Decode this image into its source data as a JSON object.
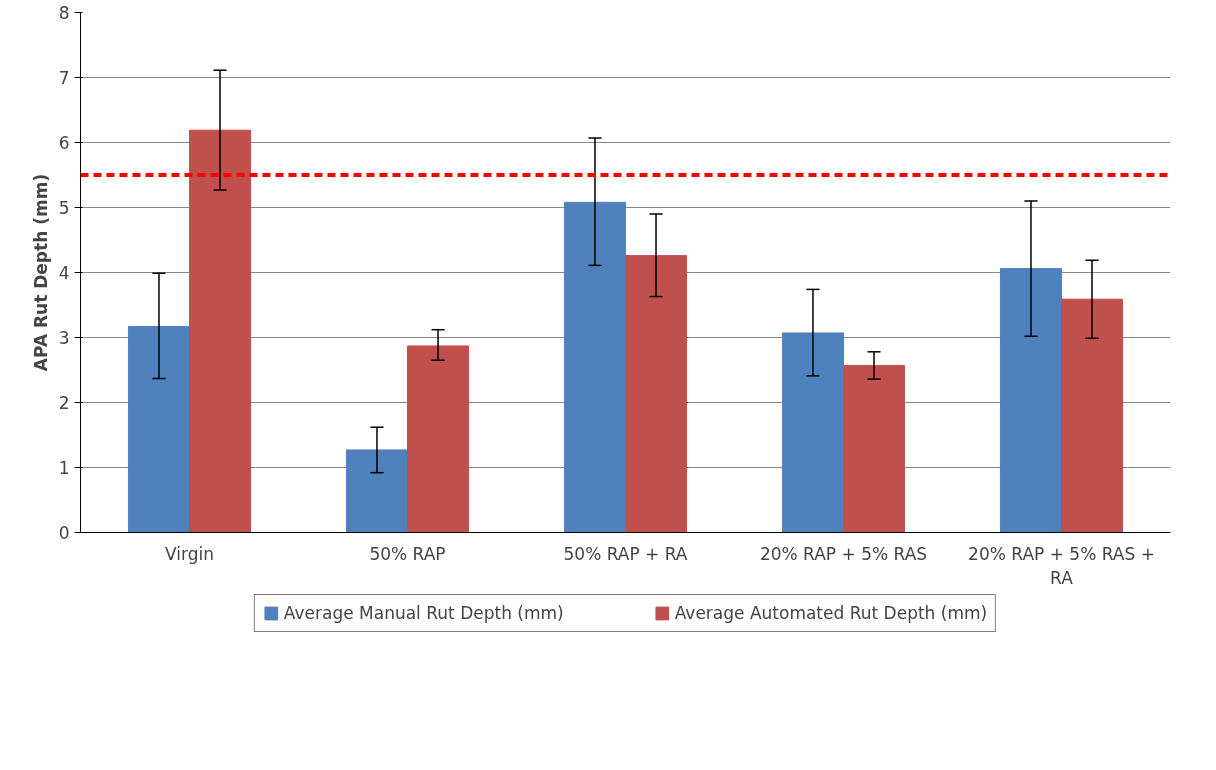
{
  "chart_data": {
    "type": "bar",
    "ylabel": "APA Rut Depth (mm)",
    "categories": [
      "Virgin",
      "50% RAP",
      "50% RAP + RA",
      "20% RAP + 5% RAS",
      "20% RAP + 5% RAS + RA"
    ],
    "series": [
      {
        "name": "Average Manual Rut Depth (mm)",
        "color": "#4f81bd",
        "values": [
          3.17,
          1.27,
          5.08,
          3.07,
          4.06
        ],
        "errors": [
          [
            2.37,
            3.99
          ],
          [
            0.92,
            1.62
          ],
          [
            4.11,
            6.07
          ],
          [
            2.41,
            3.74
          ],
          [
            3.02,
            5.1
          ]
        ]
      },
      {
        "name": "Average Automated Rut Depth (mm)",
        "color": "#c0504d",
        "values": [
          6.19,
          2.87,
          4.26,
          2.57,
          3.59
        ],
        "errors": [
          [
            5.27,
            7.11
          ],
          [
            2.65,
            3.12
          ],
          [
            3.63,
            4.9
          ],
          [
            2.36,
            2.78
          ],
          [
            2.99,
            4.19
          ]
        ]
      }
    ],
    "ylim": [
      0,
      8
    ],
    "yticks": [
      0,
      1,
      2,
      3,
      4,
      5,
      6,
      7,
      8
    ],
    "grid": "y",
    "legend": "bottom",
    "ref_lines": [
      {
        "axis": "y",
        "value": 5.5,
        "color": "#ff0000",
        "line_style": "dashed"
      }
    ]
  }
}
